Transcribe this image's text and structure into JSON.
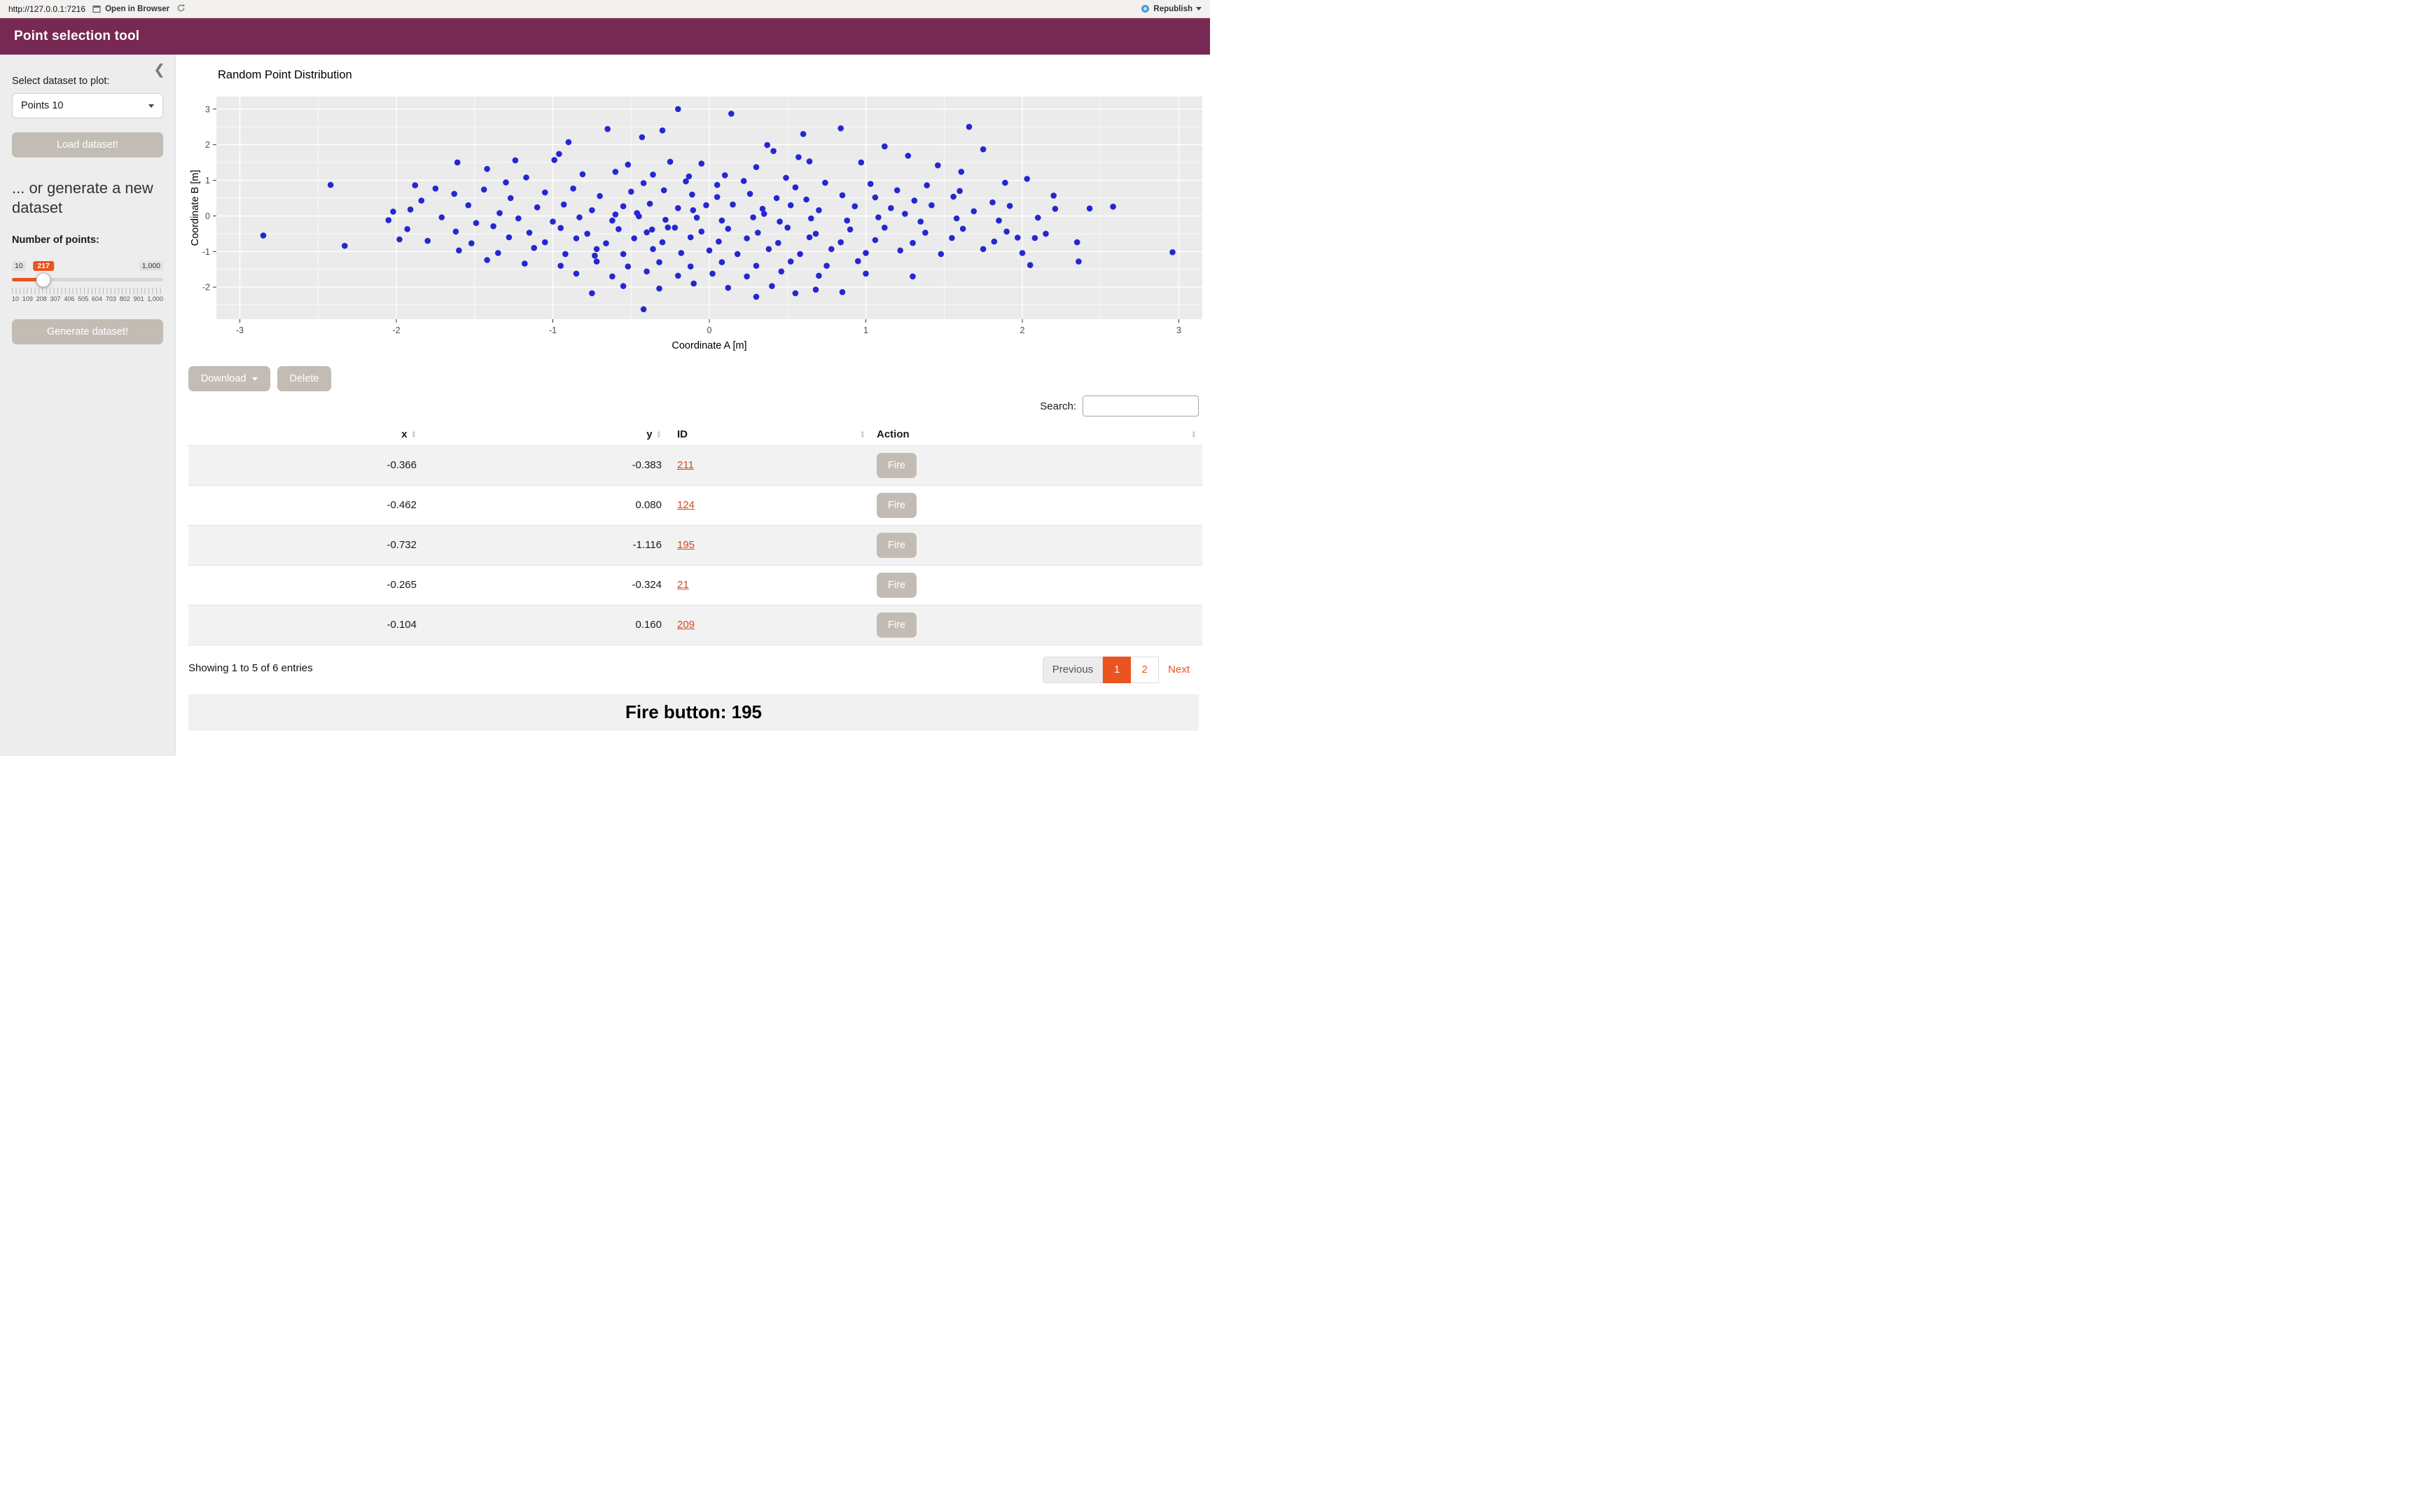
{
  "browser": {
    "url": "http://127.0.0.1:7216",
    "open_label": "Open in Browser",
    "republish_label": "Republish"
  },
  "colors": {
    "header_purple": "#772953",
    "accent_orange": "#e95420",
    "button_gray": "#c2bcb4",
    "link_orange": "#cf4a1e",
    "point_blue": "#2626d2"
  },
  "header": {
    "title": "Point selection tool"
  },
  "sidebar": {
    "select_label": "Select dataset to plot:",
    "dataset_value": "Points 10",
    "load_button": "Load dataset!",
    "generate_heading": "... or generate a new dataset",
    "points_label": "Number of points:",
    "slider": {
      "min": 10,
      "max": 1000,
      "value": 217,
      "min_label": "10",
      "max_label": "1,000",
      "value_label": "217",
      "ticks": [
        "10",
        "109",
        "208",
        "307",
        "406",
        "505",
        "604",
        "703",
        "802",
        "901",
        "1,000"
      ]
    },
    "generate_button": "Generate dataset!"
  },
  "chart_data": {
    "type": "scatter",
    "title": "Random Point Distribution",
    "xlabel": "Coordinate A [m]",
    "ylabel": "Coordinate B [m]",
    "xlim": [
      -3.15,
      3.15
    ],
    "ylim": [
      -2.9,
      3.35
    ],
    "x_ticks": [
      -3,
      -2,
      -1,
      0,
      1,
      2,
      3
    ],
    "y_ticks": [
      -2,
      -1,
      0,
      1,
      2,
      3
    ],
    "minor_x": [
      -2.5,
      -1.5,
      -0.5,
      0.5,
      1.5,
      2.5
    ],
    "minor_y": [
      -2.5,
      -1.5,
      -0.5,
      0.5,
      1.5,
      2.5
    ],
    "panel_bg": "#ebebeb",
    "grid_color": "#ffffff",
    "point_color": "#2626d2",
    "point_radius": 4.3,
    "legend": "none",
    "points": [
      [
        -0.366,
        -0.383
      ],
      [
        -0.462,
        0.08
      ],
      [
        -0.732,
        -1.116
      ],
      [
        -0.265,
        -0.324
      ],
      [
        -0.104,
        0.16
      ],
      [
        -0.2,
        3.0
      ],
      [
        0.14,
        2.87
      ],
      [
        -0.42,
        -2.62
      ],
      [
        -2.85,
        -0.55
      ],
      [
        2.96,
        -1.02
      ],
      [
        -2.42,
        0.87
      ],
      [
        -2.33,
        -0.84
      ],
      [
        2.43,
        0.21
      ],
      [
        2.58,
        0.26
      ],
      [
        2.36,
        -1.28
      ],
      [
        2.05,
        -1.38
      ],
      [
        1.89,
        0.93
      ],
      [
        1.97,
        -0.61
      ],
      [
        -1.98,
        -0.66
      ],
      [
        -2.02,
        0.12
      ],
      [
        1.66,
        2.5
      ],
      [
        0.84,
        2.46
      ],
      [
        -0.65,
        2.44
      ],
      [
        -0.43,
        2.21
      ],
      [
        1.12,
        1.95
      ],
      [
        1.27,
        1.69
      ],
      [
        0.37,
        1.99
      ],
      [
        0.41,
        1.82
      ],
      [
        -0.96,
        1.74
      ],
      [
        -0.99,
        1.57
      ],
      [
        -1.24,
        1.56
      ],
      [
        -1.61,
        1.5
      ],
      [
        0.57,
        1.65
      ],
      [
        0.64,
        1.53
      ],
      [
        0.97,
        1.5
      ],
      [
        1.46,
        1.42
      ],
      [
        1.61,
        1.24
      ],
      [
        2.03,
        1.04
      ],
      [
        -0.52,
        1.44
      ],
      [
        -1.17,
        1.08
      ],
      [
        -0.81,
        1.17
      ],
      [
        -0.6,
        1.24
      ],
      [
        -0.36,
        1.16
      ],
      [
        -0.13,
        1.11
      ],
      [
        0.1,
        1.14
      ],
      [
        0.22,
        0.98
      ],
      [
        0.49,
        1.07
      ],
      [
        0.74,
        0.93
      ],
      [
        1.03,
        0.9
      ],
      [
        1.39,
        0.86
      ],
      [
        -1.88,
        0.86
      ],
      [
        -1.84,
        0.43
      ],
      [
        -1.63,
        0.62
      ],
      [
        -1.44,
        0.74
      ],
      [
        -1.27,
        0.5
      ],
      [
        -1.05,
        0.66
      ],
      [
        -0.87,
        0.77
      ],
      [
        -0.7,
        0.56
      ],
      [
        -0.5,
        0.68
      ],
      [
        -0.29,
        0.72
      ],
      [
        -0.11,
        0.6
      ],
      [
        0.05,
        0.53
      ],
      [
        0.26,
        0.62
      ],
      [
        0.43,
        0.5
      ],
      [
        0.62,
        0.46
      ],
      [
        0.85,
        0.58
      ],
      [
        1.06,
        0.52
      ],
      [
        1.31,
        0.43
      ],
      [
        1.56,
        0.54
      ],
      [
        1.81,
        0.38
      ],
      [
        -1.91,
        0.18
      ],
      [
        -1.54,
        0.3
      ],
      [
        -1.34,
        0.08
      ],
      [
        -1.1,
        0.24
      ],
      [
        -0.93,
        0.32
      ],
      [
        -0.75,
        0.16
      ],
      [
        -0.55,
        0.27
      ],
      [
        -0.38,
        0.34
      ],
      [
        -0.2,
        0.22
      ],
      [
        -0.02,
        0.3
      ],
      [
        0.15,
        0.32
      ],
      [
        0.34,
        0.2
      ],
      [
        0.52,
        0.3
      ],
      [
        0.7,
        0.16
      ],
      [
        0.93,
        0.27
      ],
      [
        1.16,
        0.22
      ],
      [
        1.42,
        0.3
      ],
      [
        1.69,
        0.13
      ],
      [
        2.21,
        0.2
      ],
      [
        1.92,
        0.28
      ],
      [
        -2.05,
        -0.12
      ],
      [
        -1.71,
        -0.04
      ],
      [
        -1.49,
        -0.2
      ],
      [
        -1.22,
        -0.07
      ],
      [
        -1.0,
        -0.16
      ],
      [
        -0.83,
        -0.04
      ],
      [
        -0.62,
        -0.13
      ],
      [
        -0.45,
        -0.01
      ],
      [
        -0.28,
        -0.11
      ],
      [
        -0.08,
        -0.05
      ],
      [
        0.08,
        -0.13
      ],
      [
        0.28,
        -0.04
      ],
      [
        0.45,
        -0.16
      ],
      [
        0.65,
        -0.07
      ],
      [
        0.88,
        -0.13
      ],
      [
        1.08,
        -0.04
      ],
      [
        1.35,
        -0.16
      ],
      [
        1.58,
        -0.07
      ],
      [
        1.85,
        -0.13
      ],
      [
        2.1,
        -0.05
      ],
      [
        -1.93,
        -0.37
      ],
      [
        -1.62,
        -0.44
      ],
      [
        -1.38,
        -0.29
      ],
      [
        -1.15,
        -0.47
      ],
      [
        -0.95,
        -0.34
      ],
      [
        -0.78,
        -0.5
      ],
      [
        -0.58,
        -0.37
      ],
      [
        -0.4,
        -0.46
      ],
      [
        -0.22,
        -0.33
      ],
      [
        -0.05,
        -0.44
      ],
      [
        0.12,
        -0.36
      ],
      [
        0.31,
        -0.47
      ],
      [
        0.5,
        -0.33
      ],
      [
        0.68,
        -0.5
      ],
      [
        0.9,
        -0.38
      ],
      [
        1.12,
        -0.33
      ],
      [
        1.38,
        -0.47
      ],
      [
        1.62,
        -0.36
      ],
      [
        1.9,
        -0.44
      ],
      [
        2.15,
        -0.5
      ],
      [
        -1.8,
        -0.7
      ],
      [
        -1.52,
        -0.77
      ],
      [
        -1.28,
        -0.6
      ],
      [
        -1.05,
        -0.74
      ],
      [
        -0.85,
        -0.63
      ],
      [
        -0.66,
        -0.77
      ],
      [
        -0.48,
        -0.63
      ],
      [
        -0.3,
        -0.74
      ],
      [
        -0.12,
        -0.6
      ],
      [
        0.06,
        -0.72
      ],
      [
        0.24,
        -0.63
      ],
      [
        0.44,
        -0.76
      ],
      [
        0.64,
        -0.6
      ],
      [
        0.84,
        -0.74
      ],
      [
        1.06,
        -0.68
      ],
      [
        1.3,
        -0.76
      ],
      [
        1.55,
        -0.62
      ],
      [
        1.82,
        -0.72
      ],
      [
        2.08,
        -0.62
      ],
      [
        2.35,
        -0.74
      ],
      [
        -1.6,
        -0.97
      ],
      [
        -1.35,
        -1.04
      ],
      [
        -1.12,
        -0.9
      ],
      [
        -0.92,
        -1.07
      ],
      [
        -0.72,
        -0.93
      ],
      [
        -0.55,
        -1.07
      ],
      [
        -0.36,
        -0.93
      ],
      [
        -0.18,
        -1.04
      ],
      [
        0.0,
        -0.97
      ],
      [
        0.18,
        -1.07
      ],
      [
        0.38,
        -0.93
      ],
      [
        0.58,
        -1.07
      ],
      [
        0.78,
        -0.93
      ],
      [
        1.0,
        -1.04
      ],
      [
        1.22,
        -0.97
      ],
      [
        1.48,
        -1.07
      ],
      [
        1.75,
        -0.93
      ],
      [
        2.0,
        -1.04
      ],
      [
        -1.42,
        -1.24
      ],
      [
        0.95,
        -1.27
      ],
      [
        -1.18,
        -1.34
      ],
      [
        -0.95,
        -1.4
      ],
      [
        -0.72,
        -1.28
      ],
      [
        -0.52,
        -1.42
      ],
      [
        -0.32,
        -1.3
      ],
      [
        -0.12,
        -1.42
      ],
      [
        0.08,
        -1.3
      ],
      [
        0.3,
        -1.4
      ],
      [
        0.52,
        -1.28
      ],
      [
        0.75,
        -1.4
      ],
      [
        -0.85,
        -1.62
      ],
      [
        -0.62,
        -1.7
      ],
      [
        -0.4,
        -1.56
      ],
      [
        -0.2,
        -1.68
      ],
      [
        0.02,
        -1.62
      ],
      [
        0.24,
        -1.7
      ],
      [
        0.46,
        -1.56
      ],
      [
        0.7,
        -1.68
      ],
      [
        1.0,
        -1.62
      ],
      [
        1.3,
        -1.7
      ],
      [
        -0.55,
        -1.97
      ],
      [
        -0.32,
        -2.04
      ],
      [
        -0.1,
        -1.9
      ],
      [
        0.12,
        -2.02
      ],
      [
        0.4,
        -1.97
      ],
      [
        0.68,
        -2.07
      ],
      [
        -0.75,
        -2.17
      ],
      [
        0.3,
        -2.27
      ],
      [
        0.55,
        -2.17
      ],
      [
        0.85,
        -2.14
      ],
      [
        -0.9,
        2.07
      ],
      [
        -0.3,
        2.4
      ],
      [
        0.6,
        2.3
      ],
      [
        -1.42,
        1.32
      ],
      [
        1.75,
        1.87
      ],
      [
        -0.25,
        1.52
      ],
      [
        0.3,
        1.37
      ],
      [
        -0.05,
        1.47
      ],
      [
        1.2,
        0.72
      ],
      [
        -1.3,
        0.94
      ],
      [
        0.55,
        0.8
      ],
      [
        -0.42,
        0.92
      ],
      [
        0.05,
        0.87
      ],
      [
        1.6,
        0.7
      ],
      [
        -1.75,
        0.77
      ],
      [
        2.2,
        0.57
      ],
      [
        -0.15,
        0.97
      ],
      [
        0.35,
        0.06
      ],
      [
        -0.6,
        0.04
      ],
      [
        1.25,
        0.06
      ]
    ]
  },
  "toolbar": {
    "download": "Download",
    "delete": "Delete"
  },
  "search": {
    "label": "Search:",
    "value": ""
  },
  "table": {
    "columns": [
      "x",
      "y",
      "ID",
      "Action"
    ],
    "rows": [
      {
        "x": "-0.366",
        "y": "-0.383",
        "id": "211",
        "action": "Fire"
      },
      {
        "x": "-0.462",
        "y": "0.080",
        "id": "124",
        "action": "Fire"
      },
      {
        "x": "-0.732",
        "y": "-1.116",
        "id": "195",
        "action": "Fire"
      },
      {
        "x": "-0.265",
        "y": "-0.324",
        "id": "21",
        "action": "Fire"
      },
      {
        "x": "-0.104",
        "y": "0.160",
        "id": "209",
        "action": "Fire"
      }
    ],
    "info": "Showing 1 to 5 of 6 entries"
  },
  "pagination": {
    "previous": "Previous",
    "page1": "1",
    "page2": "2",
    "next": "Next",
    "active_page": "1"
  },
  "footer": {
    "text": "Fire button: 195"
  }
}
